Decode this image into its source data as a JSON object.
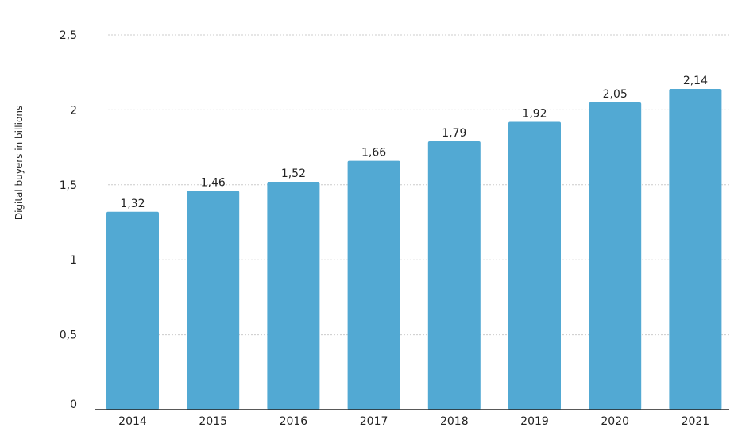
{
  "chart_data": {
    "type": "bar",
    "categories": [
      "2014",
      "2015",
      "2016",
      "2017",
      "2018",
      "2019",
      "2020",
      "2021"
    ],
    "values": [
      1.32,
      1.46,
      1.52,
      1.66,
      1.79,
      1.92,
      2.05,
      2.14
    ],
    "value_labels": [
      "1,32",
      "1,46",
      "1,52",
      "1,66",
      "1,79",
      "1,92",
      "2,05",
      "2,14"
    ],
    "ylabel": "Digital buyers in billions",
    "xlabel": "",
    "ylim": [
      0,
      2.5
    ],
    "yticks": [
      0,
      0.5,
      1,
      1.5,
      2,
      2.5
    ],
    "ytick_labels": [
      "0",
      "0,5",
      "1",
      "1,5",
      "2",
      "2,5"
    ],
    "grid": "horizontal dotted",
    "legend": "none",
    "colors": {
      "bar": "#52a9d3",
      "grid": "#cccccc",
      "axis": "#222222"
    }
  }
}
